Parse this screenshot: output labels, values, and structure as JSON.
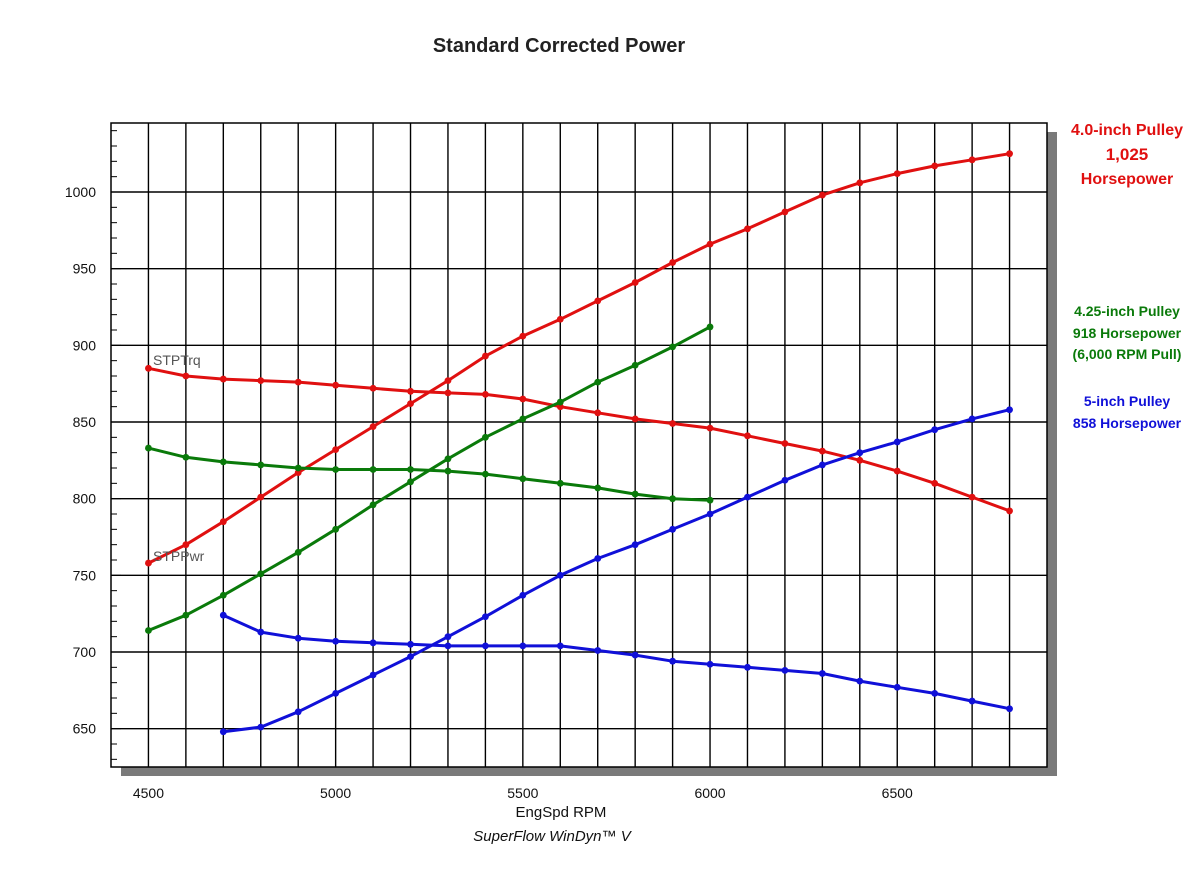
{
  "chart_data": {
    "type": "line",
    "title": "Standard Corrected Power",
    "xlabel": "EngSpd RPM",
    "software": "SuperFlow WinDyn™ V",
    "xlim": [
      4400,
      6900
    ],
    "ylim": [
      625,
      1045
    ],
    "x_ticks": [
      4500,
      5000,
      5500,
      6000,
      6500
    ],
    "y_ticks": [
      650,
      700,
      750,
      800,
      850,
      900,
      950,
      1000
    ],
    "grid": true,
    "colors": {
      "red": "#e01010",
      "green": "#0a7a0a",
      "blue": "#1010d8",
      "shadow": "#7a7a7a"
    },
    "trace_labels": {
      "torque": "STPTrq",
      "power": "STPPwr"
    },
    "series": [
      {
        "color": "red",
        "metric": "power",
        "x": [
          4500,
          4600,
          4700,
          4800,
          4900,
          5000,
          5100,
          5200,
          5300,
          5400,
          5500,
          5600,
          5700,
          5800,
          5900,
          6000,
          6100,
          6200,
          6300,
          6400,
          6500,
          6600,
          6700,
          6800
        ],
        "y": [
          758,
          770,
          785,
          801,
          817,
          832,
          847,
          862,
          877,
          893,
          906,
          917,
          929,
          941,
          954,
          966,
          976,
          987,
          998,
          1006,
          1012,
          1017,
          1021,
          1025
        ]
      },
      {
        "color": "red",
        "metric": "torque",
        "x": [
          4500,
          4600,
          4700,
          4800,
          4900,
          5000,
          5100,
          5200,
          5300,
          5400,
          5500,
          5600,
          5700,
          5800,
          5900,
          6000,
          6100,
          6200,
          6300,
          6400,
          6500,
          6600,
          6700,
          6800
        ],
        "y": [
          885,
          880,
          878,
          877,
          876,
          874,
          872,
          870,
          869,
          868,
          865,
          860,
          856,
          852,
          849,
          846,
          841,
          836,
          831,
          825,
          818,
          810,
          801,
          792
        ]
      },
      {
        "color": "green",
        "metric": "power",
        "x": [
          4500,
          4600,
          4700,
          4800,
          4900,
          5000,
          5100,
          5200,
          5300,
          5400,
          5500,
          5600,
          5700,
          5800,
          5900,
          6000
        ],
        "y": [
          714,
          724,
          737,
          751,
          765,
          780,
          796,
          811,
          826,
          840,
          852,
          863,
          876,
          887,
          899,
          912
        ]
      },
      {
        "color": "green",
        "metric": "torque",
        "x": [
          4500,
          4600,
          4700,
          4800,
          4900,
          5000,
          5100,
          5200,
          5300,
          5400,
          5500,
          5600,
          5700,
          5800,
          5900,
          6000
        ],
        "y": [
          833,
          827,
          824,
          822,
          820,
          819,
          819,
          819,
          818,
          816,
          813,
          810,
          807,
          803,
          800,
          799
        ]
      },
      {
        "color": "blue",
        "metric": "power",
        "x": [
          4700,
          4800,
          4900,
          5000,
          5100,
          5200,
          5300,
          5400,
          5500,
          5600,
          5700,
          5800,
          5900,
          6000,
          6100,
          6200,
          6300,
          6400,
          6500,
          6600,
          6700,
          6800
        ],
        "y": [
          648,
          651,
          661,
          673,
          685,
          697,
          710,
          723,
          737,
          750,
          761,
          770,
          780,
          790,
          801,
          812,
          822,
          830,
          837,
          845,
          852,
          858
        ]
      },
      {
        "color": "blue",
        "metric": "torque",
        "x": [
          4700,
          4800,
          4900,
          5000,
          5100,
          5200,
          5300,
          5400,
          5500,
          5600,
          5700,
          5800,
          5900,
          6000,
          6100,
          6200,
          6300,
          6400,
          6500,
          6600,
          6700,
          6800
        ],
        "y": [
          724,
          713,
          709,
          707,
          706,
          705,
          704,
          704,
          704,
          704,
          701,
          698,
          694,
          692,
          690,
          688,
          686,
          681,
          677,
          673,
          668,
          663
        ]
      }
    ],
    "legend": {
      "red": [
        "4.0-inch Pulley",
        "1,025",
        "Horsepower"
      ],
      "green": [
        "4.25-inch Pulley",
        "918 Horsepower",
        "(6,000 RPM Pull)"
      ],
      "blue": [
        "5-inch Pulley",
        "858 Horsepower"
      ]
    }
  }
}
